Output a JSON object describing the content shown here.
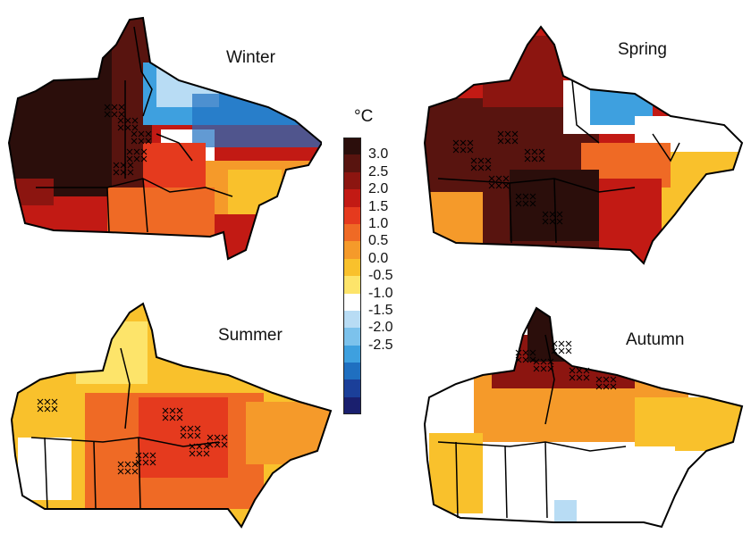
{
  "legend": {
    "unit": "°C",
    "ticks": [
      "3.0",
      "2.5",
      "2.0",
      "1.5",
      "1.0",
      "0.5",
      "0.0",
      "-0.5",
      "-1.0",
      "-1.5",
      "-2.0",
      "-2.5"
    ],
    "colors": [
      "#2b0e0b",
      "#58140f",
      "#8c1510",
      "#c21a14",
      "#e53a1e",
      "#ef6a25",
      "#f59a2a",
      "#f9c12c",
      "#fde46a",
      "#ffffff",
      "#b8dcf4",
      "#7cc2ec",
      "#3ea0df",
      "#1f6fc0",
      "#1b3f99",
      "#1a1f6e"
    ]
  },
  "panels": [
    {
      "id": "winter",
      "title": "Winter",
      "palette": "winter"
    },
    {
      "id": "spring",
      "title": "Spring",
      "palette": "spring"
    },
    {
      "id": "summer",
      "title": "Summer",
      "palette": "summer"
    },
    {
      "id": "autumn",
      "title": "Autumn",
      "palette": "autumn"
    }
  ]
}
